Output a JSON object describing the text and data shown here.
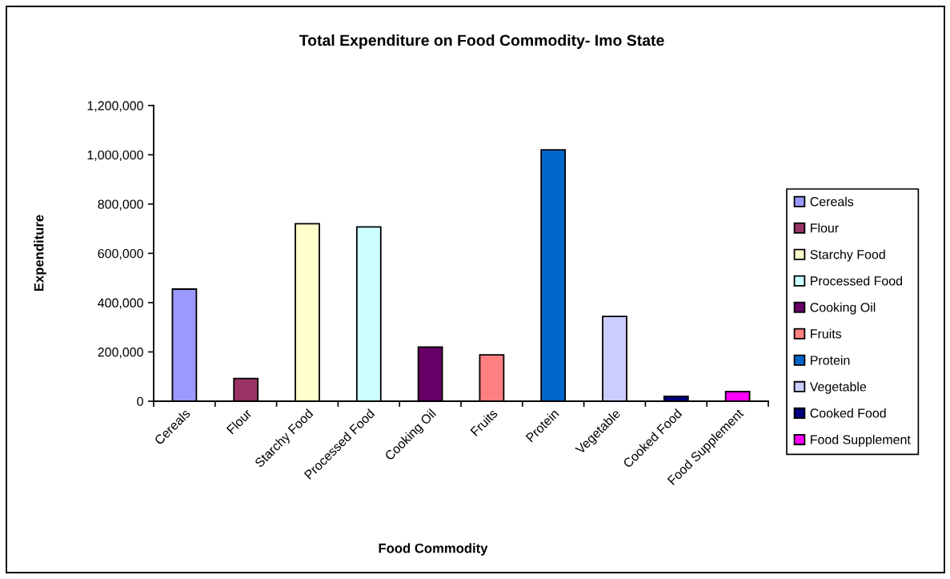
{
  "chart_data": {
    "type": "bar",
    "title": "Total Expenditure on Food Commodity- Imo State",
    "xlabel": "Food Commodity",
    "ylabel": "Expenditure",
    "categories": [
      "Cereals",
      "Flour",
      "Starchy Food",
      "Processed Food",
      "Cooking Oil",
      "Fruits",
      "Protein",
      "Vegetable",
      "Cooked Food",
      "Food Supplement"
    ],
    "series": [
      {
        "name": "Cereals",
        "color": "#9999ff",
        "values": [
          455000,
          null,
          null,
          null,
          null,
          null,
          null,
          null,
          null,
          null
        ]
      },
      {
        "name": "Flour",
        "color": "#993366",
        "values": [
          null,
          92000,
          null,
          null,
          null,
          null,
          null,
          null,
          null,
          null
        ]
      },
      {
        "name": "Starchy Food",
        "color": "#ffffcc",
        "values": [
          null,
          null,
          720000,
          null,
          null,
          null,
          null,
          null,
          null,
          null
        ]
      },
      {
        "name": "Processed Food",
        "color": "#ccffff",
        "values": [
          null,
          null,
          null,
          707000,
          null,
          null,
          null,
          null,
          null,
          null
        ]
      },
      {
        "name": "Cooking Oil",
        "color": "#660066",
        "values": [
          null,
          null,
          null,
          null,
          220000,
          null,
          null,
          null,
          null,
          null
        ]
      },
      {
        "name": "Fruits",
        "color": "#ff8080",
        "values": [
          null,
          null,
          null,
          null,
          null,
          188000,
          null,
          null,
          null,
          null
        ]
      },
      {
        "name": "Protein",
        "color": "#0066cc",
        "values": [
          null,
          null,
          null,
          null,
          null,
          null,
          1020000,
          null,
          null,
          null
        ]
      },
      {
        "name": "Vegetable",
        "color": "#ccccff",
        "values": [
          null,
          null,
          null,
          null,
          null,
          null,
          null,
          344000,
          null,
          null
        ]
      },
      {
        "name": "Cooked Food",
        "color": "#000080",
        "values": [
          null,
          null,
          null,
          null,
          null,
          null,
          null,
          null,
          20000,
          null
        ]
      },
      {
        "name": "Food Supplement",
        "color": "#ff00ff",
        "values": [
          null,
          null,
          null,
          null,
          null,
          null,
          null,
          null,
          null,
          39000
        ]
      }
    ],
    "ylim": [
      0,
      1200000
    ],
    "yticks": [
      0,
      {
        "value": 200000,
        "label": "200,000"
      },
      {
        "value": 400000,
        "label": "400,000"
      },
      {
        "value": 600000,
        "label": "600,000"
      },
      {
        "value": 800000,
        "label": "800,000"
      },
      {
        "value": 1000000,
        "label": "1,000,000"
      },
      {
        "value": 1200000,
        "label": "1,200,000"
      }
    ],
    "grid": false,
    "legend": "right"
  }
}
